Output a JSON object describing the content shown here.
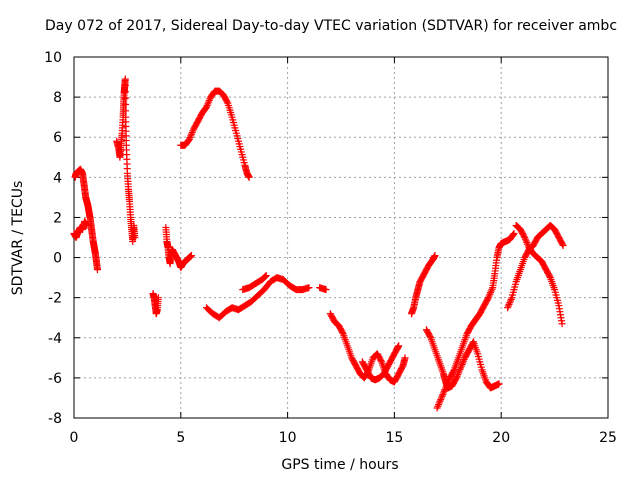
{
  "chart_data": {
    "type": "scatter",
    "title": "Day 072 of 2017, Sidereal Day-to-day VTEC variation (SDTVAR) for receiver ambc",
    "xlabel": "GPS time / hours",
    "ylabel": "SDTVAR / TECUs",
    "xlim": [
      0,
      25
    ],
    "ylim": [
      -8,
      10
    ],
    "xticks": [
      "0",
      "5",
      "10",
      "15",
      "20",
      "25"
    ],
    "yticks": [
      "-8",
      "-6",
      "-4",
      "-2",
      "0",
      "2",
      "4",
      "6",
      "8",
      "10"
    ],
    "grid": true,
    "marker": "+",
    "color": "#ff0000",
    "series": [
      {
        "name": "SDTVAR",
        "segments": [
          [
            [
              0.0,
              1.2
            ],
            [
              0.1,
              1.0
            ],
            [
              0.2,
              1.3
            ],
            [
              0.3,
              1.5
            ],
            [
              0.4,
              1.4
            ],
            [
              0.5,
              1.8
            ],
            [
              0.6,
              1.6
            ]
          ],
          [
            [
              0.05,
              4.0
            ],
            [
              0.1,
              4.2
            ],
            [
              0.2,
              4.3
            ],
            [
              0.3,
              4.4
            ],
            [
              0.4,
              4.2
            ],
            [
              0.45,
              3.8
            ],
            [
              0.5,
              3.4
            ],
            [
              0.55,
              3.0
            ],
            [
              0.6,
              2.8
            ],
            [
              0.65,
              2.6
            ],
            [
              0.7,
              2.3
            ],
            [
              0.75,
              2.0
            ],
            [
              0.8,
              1.6
            ],
            [
              0.85,
              1.2
            ],
            [
              0.9,
              0.8
            ],
            [
              0.95,
              0.5
            ],
            [
              1.0,
              0.2
            ],
            [
              1.05,
              -0.2
            ],
            [
              1.1,
              -0.6
            ]
          ],
          [
            [
              2.0,
              5.8
            ],
            [
              2.1,
              5.4
            ],
            [
              2.15,
              5.0
            ],
            [
              2.2,
              5.6
            ],
            [
              2.25,
              6.2
            ],
            [
              2.3,
              7.0
            ],
            [
              2.32,
              7.6
            ],
            [
              2.35,
              8.2
            ],
            [
              2.37,
              8.5
            ],
            [
              2.4,
              8.9
            ],
            [
              2.42,
              7.0
            ],
            [
              2.45,
              5.6
            ],
            [
              2.5,
              4.2
            ],
            [
              2.55,
              3.4
            ],
            [
              2.6,
              2.8
            ],
            [
              2.65,
              2.0
            ],
            [
              2.7,
              1.4
            ],
            [
              2.75,
              0.8
            ],
            [
              2.8,
              1.6
            ],
            [
              2.85,
              1.0
            ]
          ],
          [
            [
              3.7,
              -1.8
            ],
            [
              3.75,
              -2.0
            ],
            [
              3.8,
              -2.4
            ],
            [
              3.85,
              -2.8
            ],
            [
              3.9,
              -2.6
            ],
            [
              3.95,
              -2.0
            ]
          ],
          [
            [
              4.3,
              1.5
            ],
            [
              4.35,
              0.8
            ],
            [
              4.4,
              0.5
            ],
            [
              4.45,
              0.0
            ],
            [
              4.5,
              -0.3
            ],
            [
              4.55,
              0.2
            ],
            [
              4.6,
              0.4
            ],
            [
              4.7,
              0.2
            ],
            [
              4.8,
              0.0
            ],
            [
              4.9,
              -0.2
            ],
            [
              5.0,
              -0.5
            ],
            [
              5.1,
              -0.3
            ],
            [
              5.2,
              -0.2
            ],
            [
              5.3,
              -0.1
            ],
            [
              5.4,
              0.0
            ],
            [
              5.5,
              0.1
            ]
          ],
          [
            [
              5.0,
              5.6
            ],
            [
              5.2,
              5.6
            ],
            [
              5.4,
              5.9
            ],
            [
              5.6,
              6.4
            ],
            [
              5.8,
              6.8
            ],
            [
              6.0,
              7.2
            ],
            [
              6.2,
              7.5
            ],
            [
              6.4,
              8.0
            ],
            [
              6.6,
              8.3
            ],
            [
              6.8,
              8.3
            ],
            [
              7.0,
              8.1
            ],
            [
              7.2,
              7.7
            ],
            [
              7.4,
              7.0
            ],
            [
              7.6,
              6.2
            ],
            [
              7.8,
              5.4
            ],
            [
              8.0,
              4.6
            ],
            [
              8.1,
              4.2
            ],
            [
              8.2,
              4.0
            ]
          ],
          [
            [
              6.2,
              -2.5
            ],
            [
              6.5,
              -2.8
            ],
            [
              6.8,
              -3.0
            ],
            [
              7.1,
              -2.7
            ],
            [
              7.4,
              -2.5
            ],
            [
              7.7,
              -2.6
            ],
            [
              8.0,
              -2.4
            ],
            [
              8.3,
              -2.2
            ],
            [
              8.6,
              -1.9
            ],
            [
              8.9,
              -1.6
            ],
            [
              9.2,
              -1.2
            ],
            [
              9.5,
              -1.0
            ],
            [
              9.8,
              -1.1
            ],
            [
              10.1,
              -1.4
            ],
            [
              10.4,
              -1.6
            ],
            [
              10.7,
              -1.6
            ],
            [
              11.0,
              -1.5
            ]
          ],
          [
            [
              7.9,
              -1.6
            ],
            [
              8.2,
              -1.5
            ],
            [
              8.5,
              -1.3
            ],
            [
              8.8,
              -1.1
            ],
            [
              9.0,
              -0.9
            ]
          ],
          [
            [
              11.5,
              -1.5
            ],
            [
              11.8,
              -1.6
            ]
          ],
          [
            [
              12.0,
              -2.8
            ],
            [
              12.2,
              -3.2
            ],
            [
              12.4,
              -3.4
            ],
            [
              12.6,
              -3.8
            ],
            [
              12.8,
              -4.4
            ],
            [
              13.0,
              -5.0
            ],
            [
              13.2,
              -5.4
            ],
            [
              13.4,
              -5.8
            ],
            [
              13.6,
              -6.0
            ],
            [
              13.8,
              -5.6
            ],
            [
              14.0,
              -5.0
            ],
            [
              14.2,
              -4.8
            ],
            [
              14.4,
              -5.2
            ],
            [
              14.6,
              -5.8
            ],
            [
              14.8,
              -6.1
            ],
            [
              15.0,
              -6.2
            ],
            [
              15.2,
              -5.8
            ],
            [
              15.4,
              -5.4
            ],
            [
              15.5,
              -5.0
            ]
          ],
          [
            [
              13.5,
              -5.2
            ],
            [
              13.7,
              -5.6
            ],
            [
              13.9,
              -6.0
            ],
            [
              14.1,
              -6.1
            ],
            [
              14.3,
              -6.0
            ],
            [
              14.5,
              -5.8
            ],
            [
              14.7,
              -5.4
            ],
            [
              14.9,
              -5.0
            ],
            [
              15.1,
              -4.6
            ],
            [
              15.2,
              -4.4
            ]
          ],
          [
            [
              15.8,
              -2.8
            ],
            [
              15.9,
              -2.5
            ],
            [
              16.0,
              -2.0
            ],
            [
              16.1,
              -1.6
            ],
            [
              16.2,
              -1.2
            ],
            [
              16.4,
              -0.8
            ],
            [
              16.6,
              -0.4
            ],
            [
              16.8,
              -0.1
            ],
            [
              16.9,
              0.1
            ]
          ],
          [
            [
              16.5,
              -3.6
            ],
            [
              16.7,
              -4.0
            ],
            [
              16.9,
              -4.6
            ],
            [
              17.1,
              -5.2
            ],
            [
              17.3,
              -5.8
            ],
            [
              17.4,
              -6.2
            ],
            [
              17.5,
              -6.5
            ],
            [
              17.7,
              -6.4
            ],
            [
              17.9,
              -6.0
            ],
            [
              18.1,
              -5.5
            ],
            [
              18.3,
              -5.0
            ],
            [
              18.5,
              -4.6
            ],
            [
              18.7,
              -4.2
            ],
            [
              18.9,
              -4.8
            ],
            [
              19.1,
              -5.6
            ],
            [
              19.3,
              -6.2
            ],
            [
              19.5,
              -6.5
            ],
            [
              19.7,
              -6.4
            ],
            [
              19.9,
              -6.3
            ]
          ],
          [
            [
              17.0,
              -7.5
            ],
            [
              17.2,
              -7.0
            ],
            [
              17.4,
              -6.5
            ],
            [
              17.6,
              -6.0
            ],
            [
              17.8,
              -5.6
            ],
            [
              18.0,
              -5.0
            ],
            [
              18.2,
              -4.4
            ],
            [
              18.4,
              -3.8
            ],
            [
              18.6,
              -3.4
            ],
            [
              18.8,
              -3.1
            ],
            [
              19.0,
              -2.8
            ],
            [
              19.2,
              -2.4
            ],
            [
              19.4,
              -2.0
            ],
            [
              19.6,
              -1.5
            ],
            [
              19.7,
              -0.8
            ],
            [
              19.8,
              0.0
            ],
            [
              19.9,
              0.5
            ],
            [
              20.0,
              0.7
            ],
            [
              20.2,
              0.8
            ],
            [
              20.4,
              0.9
            ],
            [
              20.6,
              1.2
            ]
          ],
          [
            [
              20.3,
              -2.5
            ],
            [
              20.5,
              -2.0
            ],
            [
              20.7,
              -1.2
            ],
            [
              20.9,
              -0.6
            ],
            [
              21.1,
              0.0
            ],
            [
              21.3,
              0.4
            ],
            [
              21.5,
              0.6
            ],
            [
              21.7,
              1.0
            ],
            [
              21.9,
              1.2
            ],
            [
              22.1,
              1.4
            ],
            [
              22.3,
              1.6
            ],
            [
              22.5,
              1.4
            ],
            [
              22.7,
              1.0
            ],
            [
              22.9,
              0.6
            ]
          ],
          [
            [
              20.7,
              1.6
            ],
            [
              20.9,
              1.4
            ],
            [
              21.1,
              1.0
            ],
            [
              21.3,
              0.5
            ],
            [
              21.5,
              0.2
            ],
            [
              21.7,
              0.0
            ],
            [
              21.9,
              -0.2
            ],
            [
              22.1,
              -0.6
            ],
            [
              22.3,
              -1.0
            ],
            [
              22.5,
              -1.6
            ],
            [
              22.7,
              -2.4
            ],
            [
              22.85,
              -3.3
            ]
          ]
        ]
      }
    ]
  }
}
